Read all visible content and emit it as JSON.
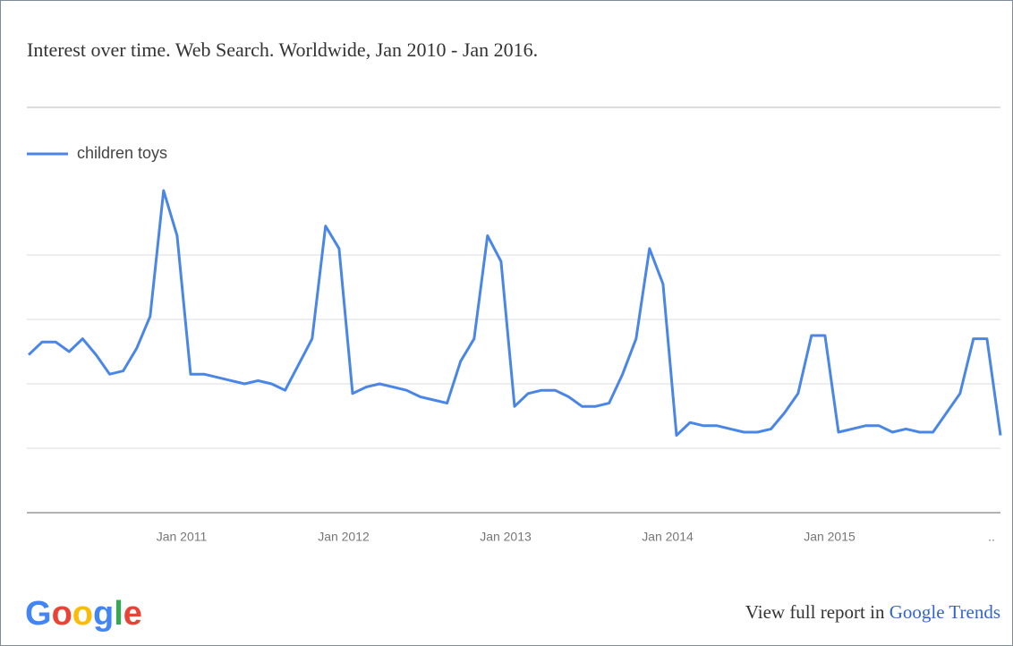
{
  "chart_data": {
    "type": "line",
    "title": "Interest over time. Web Search. Worldwide, Jan 2010 - Jan 2016.",
    "categories": [
      null,
      null,
      null,
      null,
      null,
      null,
      null,
      null,
      null,
      null,
      null,
      null,
      "Jan 2011",
      null,
      null,
      null,
      null,
      null,
      null,
      null,
      null,
      null,
      null,
      null,
      "Jan 2012",
      null,
      null,
      null,
      null,
      null,
      null,
      null,
      null,
      null,
      null,
      null,
      "Jan 2013",
      null,
      null,
      null,
      null,
      null,
      null,
      null,
      null,
      null,
      null,
      null,
      "Jan 2014",
      null,
      null,
      null,
      null,
      null,
      null,
      null,
      null,
      null,
      null,
      null,
      "Jan 2015",
      null,
      null,
      null,
      null,
      null,
      null,
      null,
      null,
      null,
      null,
      null,
      ".."
    ],
    "series": [
      {
        "name": "children toys",
        "color": "#4a86e8",
        "values": [
          49,
          53,
          53,
          50,
          54,
          49,
          43,
          44,
          51,
          61,
          100,
          86,
          43,
          43,
          42,
          41,
          40,
          41,
          40,
          38,
          46,
          54,
          89,
          82,
          37,
          39,
          40,
          39,
          38,
          36,
          35,
          34,
          47,
          54,
          86,
          78,
          33,
          37,
          38,
          38,
          36,
          33,
          33,
          34,
          43,
          54,
          82,
          71,
          24,
          28,
          27,
          27,
          26,
          25,
          25,
          26,
          31,
          37,
          55,
          55,
          25,
          26,
          27,
          27,
          25,
          26,
          25,
          25,
          31,
          37,
          54,
          54,
          24
        ]
      }
    ],
    "ylim": [
      0,
      100
    ],
    "ygrid": [
      20,
      40,
      60,
      80
    ],
    "legend": "top-left"
  },
  "footer": {
    "logo": "Google",
    "logo_colors": [
      "#4285f4",
      "#ea4335",
      "#fbbc05",
      "#4285f4",
      "#34a853",
      "#ea4335"
    ],
    "report_text": "View full report in ",
    "report_link": "Google Trends",
    "link_color": "#3366cc"
  }
}
